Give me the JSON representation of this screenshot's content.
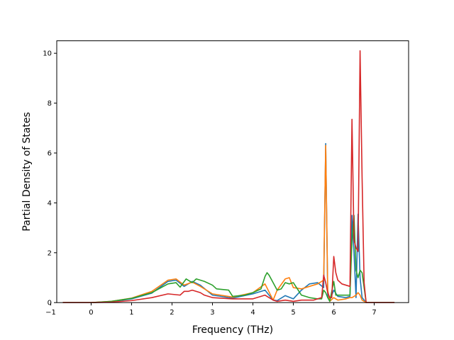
{
  "chart_data": {
    "type": "line",
    "title": "",
    "xlabel": "Frequency (THz)",
    "ylabel": "Partial Density of States",
    "xlim": [
      -0.85,
      7.85
    ],
    "ylim": [
      0,
      10.5
    ],
    "xticks": [
      -1,
      0,
      1,
      2,
      3,
      4,
      5,
      6,
      7
    ],
    "yticks": [
      0,
      2,
      4,
      6,
      8,
      10
    ],
    "grid": false,
    "legend": "none",
    "series": [
      {
        "color": "#1f77b4",
        "x": [
          -0.7,
          0.0,
          0.5,
          1.0,
          1.5,
          1.9,
          2.1,
          2.3,
          2.5,
          2.7,
          3.0,
          3.5,
          4.0,
          4.3,
          4.5,
          4.6,
          4.8,
          5.0,
          5.2,
          5.4,
          5.6,
          5.75,
          5.8,
          5.85,
          5.9,
          6.0,
          6.1,
          6.3,
          6.4,
          6.45,
          6.5,
          6.55,
          6.6,
          6.65,
          6.7,
          6.8,
          7.0,
          7.5
        ],
        "values": [
          0.0,
          0.0,
          0.04,
          0.15,
          0.38,
          0.85,
          0.9,
          0.65,
          0.85,
          0.7,
          0.3,
          0.18,
          0.35,
          0.5,
          0.1,
          0.08,
          0.28,
          0.15,
          0.5,
          0.75,
          0.8,
          0.6,
          6.38,
          0.3,
          0.1,
          0.5,
          0.25,
          0.2,
          0.25,
          3.5,
          2.0,
          0.2,
          3.55,
          1.0,
          0.2,
          0.0,
          0.0,
          0.0
        ]
      },
      {
        "color": "#ff7f0e",
        "x": [
          -0.7,
          0.0,
          0.5,
          1.0,
          1.5,
          1.9,
          2.1,
          2.3,
          2.5,
          2.7,
          3.0,
          3.5,
          4.0,
          4.3,
          4.5,
          4.6,
          4.8,
          4.9,
          5.0,
          5.2,
          5.4,
          5.6,
          5.75,
          5.8,
          5.85,
          5.9,
          6.0,
          6.1,
          6.3,
          6.4,
          6.45,
          6.5,
          6.55,
          6.6,
          6.65,
          6.7,
          6.8,
          7.0,
          7.5
        ],
        "values": [
          0.0,
          0.0,
          0.05,
          0.18,
          0.45,
          0.9,
          0.95,
          0.7,
          0.82,
          0.65,
          0.35,
          0.22,
          0.4,
          0.75,
          0.1,
          0.5,
          0.95,
          1.0,
          0.6,
          0.55,
          0.65,
          0.75,
          0.9,
          6.3,
          0.5,
          0.05,
          0.2,
          0.1,
          0.15,
          0.2,
          0.2,
          0.25,
          0.3,
          0.4,
          0.3,
          0.1,
          0.0,
          0.0,
          0.0
        ]
      },
      {
        "color": "#2ca02c",
        "x": [
          -0.7,
          0.0,
          0.5,
          1.0,
          1.5,
          1.9,
          2.1,
          2.2,
          2.35,
          2.5,
          2.6,
          2.8,
          3.0,
          3.1,
          3.4,
          3.5,
          3.8,
          4.0,
          4.2,
          4.3,
          4.35,
          4.4,
          4.6,
          4.7,
          4.8,
          4.9,
          5.0,
          5.2,
          5.4,
          5.6,
          5.7,
          5.75,
          5.8,
          5.85,
          5.9,
          6.0,
          6.05,
          6.1,
          6.4,
          6.45,
          6.5,
          6.55,
          6.6,
          6.65,
          6.7,
          6.8,
          7.0,
          7.5
        ],
        "values": [
          0.0,
          0.0,
          0.05,
          0.17,
          0.4,
          0.75,
          0.8,
          0.62,
          0.95,
          0.8,
          0.95,
          0.85,
          0.7,
          0.55,
          0.5,
          0.25,
          0.3,
          0.4,
          0.55,
          1.05,
          1.2,
          1.1,
          0.5,
          0.55,
          0.8,
          0.75,
          0.8,
          0.3,
          0.2,
          0.15,
          0.15,
          0.5,
          0.4,
          0.2,
          0.05,
          0.85,
          0.3,
          0.3,
          0.3,
          2.5,
          3.5,
          1.3,
          1.0,
          1.3,
          1.2,
          0.0,
          0.0,
          0.0
        ]
      },
      {
        "color": "#d62728",
        "x": [
          -0.7,
          0.0,
          0.5,
          1.0,
          1.5,
          1.9,
          2.2,
          2.3,
          2.4,
          2.5,
          2.7,
          2.8,
          3.0,
          3.5,
          4.0,
          4.2,
          4.3,
          4.5,
          4.6,
          4.8,
          5.0,
          5.2,
          5.5,
          5.7,
          5.75,
          5.8,
          5.85,
          5.9,
          5.95,
          6.0,
          6.05,
          6.1,
          6.2,
          6.3,
          6.4,
          6.45,
          6.5,
          6.55,
          6.6,
          6.65,
          6.7,
          6.75,
          6.8,
          7.0,
          7.5
        ],
        "values": [
          0.0,
          0.0,
          0.02,
          0.08,
          0.2,
          0.35,
          0.3,
          0.45,
          0.45,
          0.5,
          0.4,
          0.3,
          0.2,
          0.15,
          0.15,
          0.25,
          0.3,
          0.1,
          0.05,
          0.1,
          0.05,
          0.1,
          0.1,
          0.2,
          1.1,
          0.8,
          0.4,
          0.2,
          0.2,
          1.85,
          1.2,
          0.9,
          0.75,
          0.7,
          0.65,
          7.35,
          2.5,
          2.2,
          2.05,
          10.1,
          5.0,
          0.8,
          0.0,
          0.0,
          0.0
        ]
      }
    ]
  }
}
